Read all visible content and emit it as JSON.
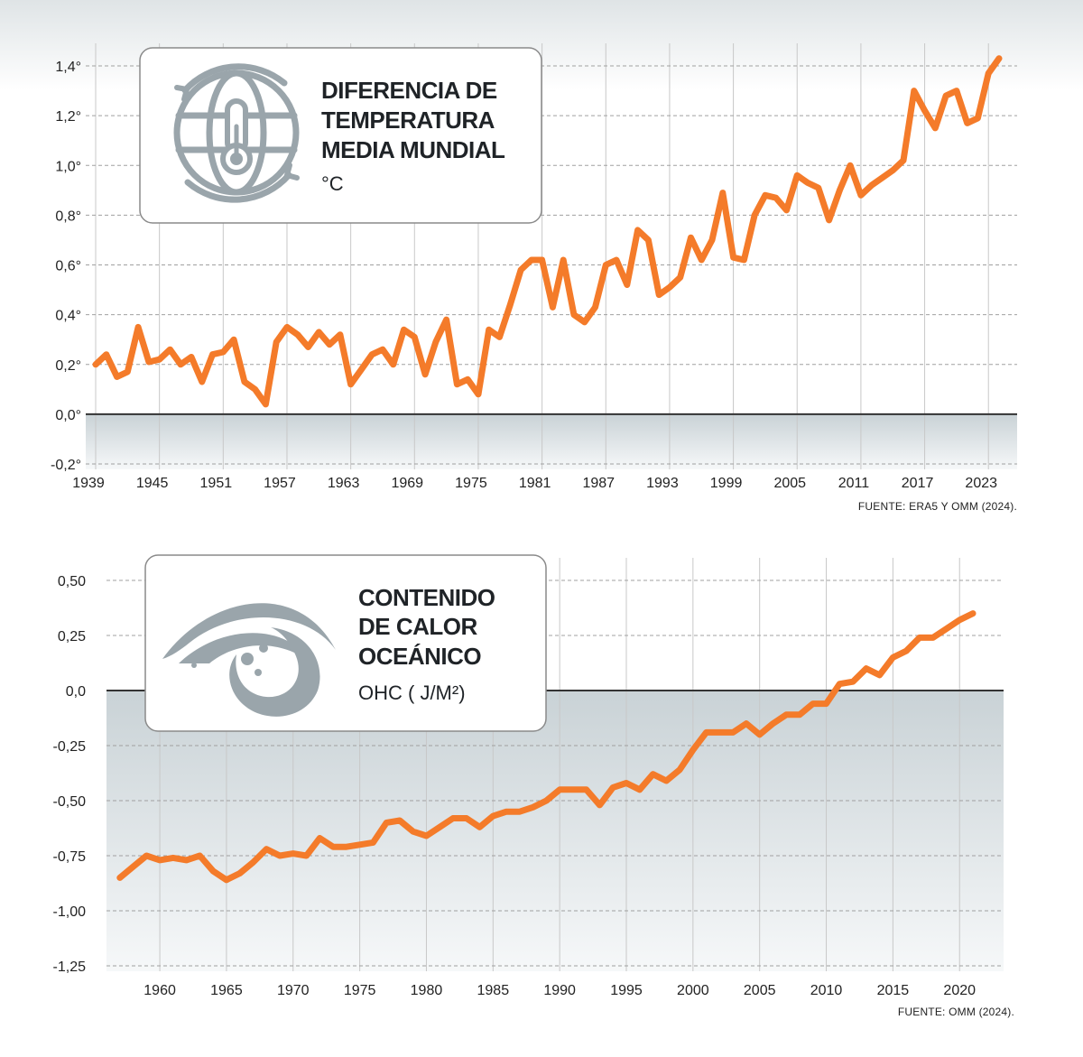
{
  "colors": {
    "line": "#F47B2A",
    "grid": "#a0a0a0",
    "vgrid": "#c8c8c8",
    "icon": "#9aa5ab",
    "card_border": "#8a8a8a"
  },
  "icons": [
    "globe-thermometer-icon",
    "ocean-wave-icon"
  ],
  "chart_data": [
    {
      "type": "line",
      "title_lines": [
        "DIFERENCIA DE",
        "TEMPERATURA",
        "MEDIA MUNDIAL"
      ],
      "unit_label": "°C",
      "source": "FUENTE: ERA5 Y OMM (2024).",
      "ylim": [
        -0.2,
        1.4
      ],
      "xlim": [
        1939,
        2024
      ],
      "y_tick_values": [
        1.4,
        1.2,
        1.0,
        0.8,
        0.6,
        0.4,
        0.2,
        0.0,
        -0.2
      ],
      "y_tick_labels": [
        "1,4°",
        "1,2°",
        "1,0°",
        "0,8°",
        "0,6°",
        "0,4°",
        "0,2°",
        "0,0°",
        "-0,2°"
      ],
      "x_tick_values": [
        1939,
        1945,
        1951,
        1957,
        1963,
        1969,
        1975,
        1981,
        1987,
        1993,
        1999,
        2005,
        2011,
        2017,
        2023
      ],
      "x_tick_labels": [
        "1939",
        "1945",
        "1951",
        "1957",
        "1963",
        "1969",
        "1975",
        "1981",
        "1987",
        "1993",
        "1999",
        "2005",
        "2011",
        "2017",
        "2023"
      ],
      "grid": true,
      "series": [
        {
          "x": [
            1939,
            1940,
            1941,
            1942,
            1943,
            1944,
            1945,
            1946,
            1947,
            1948,
            1949,
            1950,
            1951,
            1952,
            1953,
            1954,
            1955,
            1956,
            1957,
            1958,
            1959,
            1960,
            1961,
            1962,
            1963,
            1964,
            1965,
            1966,
            1967,
            1968,
            1969,
            1970,
            1971,
            1972,
            1973,
            1974,
            1975,
            1976,
            1977,
            1978,
            1979,
            1980,
            1981,
            1982,
            1983,
            1984,
            1985,
            1986,
            1987,
            1988,
            1989,
            1990,
            1991,
            1992,
            1993,
            1994,
            1995,
            1996,
            1997,
            1998,
            1999,
            2000,
            2001,
            2002,
            2003,
            2004,
            2005,
            2006,
            2007,
            2008,
            2009,
            2010,
            2011,
            2012,
            2013,
            2014,
            2015,
            2016,
            2017,
            2018,
            2019,
            2020,
            2021,
            2022,
            2023,
            2024
          ],
          "y": [
            0.2,
            0.24,
            0.15,
            0.17,
            0.35,
            0.21,
            0.22,
            0.26,
            0.2,
            0.23,
            0.13,
            0.24,
            0.25,
            0.3,
            0.13,
            0.1,
            0.04,
            0.29,
            0.35,
            0.32,
            0.27,
            0.33,
            0.28,
            0.32,
            0.12,
            0.18,
            0.24,
            0.26,
            0.2,
            0.34,
            0.31,
            0.16,
            0.29,
            0.38,
            0.12,
            0.14,
            0.08,
            0.34,
            0.31,
            0.44,
            0.58,
            0.62,
            0.62,
            0.43,
            0.62,
            0.4,
            0.37,
            0.43,
            0.6,
            0.62,
            0.52,
            0.74,
            0.7,
            0.48,
            0.51,
            0.55,
            0.71,
            0.62,
            0.7,
            0.89,
            0.63,
            0.62,
            0.8,
            0.88,
            0.87,
            0.82,
            0.96,
            0.93,
            0.91,
            0.78,
            0.9,
            1.0,
            0.88,
            0.92,
            0.95,
            0.98,
            1.02,
            1.3,
            1.22,
            1.15,
            1.28,
            1.3,
            1.17,
            1.19,
            1.37,
            1.43
          ]
        }
      ]
    },
    {
      "type": "line",
      "title_lines": [
        "CONTENIDO",
        "DE CALOR",
        "OCEÁNICO"
      ],
      "unit_label": "OHC ( J/M²)",
      "source": "FUENTE: OMM (2024).",
      "ylim": [
        -1.25,
        0.5
      ],
      "xlim": [
        1956,
        2021
      ],
      "y_tick_values": [
        0.5,
        0.25,
        0.0,
        -0.25,
        -0.5,
        -0.75,
        -1.0,
        -1.25
      ],
      "y_tick_labels": [
        "0,50",
        "0,25",
        "0,0",
        "-0,25",
        "-0,50",
        "-0,75",
        "-1,00",
        "-1,25"
      ],
      "x_tick_values": [
        1960,
        1965,
        1970,
        1975,
        1980,
        1985,
        1990,
        1995,
        2000,
        2005,
        2010,
        2015,
        2020
      ],
      "x_tick_labels": [
        "1960",
        "1965",
        "1970",
        "1975",
        "1980",
        "1985",
        "1990",
        "1995",
        "2000",
        "2005",
        "2010",
        "2015",
        "2020"
      ],
      "grid": true,
      "series": [
        {
          "x": [
            1957,
            1958,
            1959,
            1960,
            1961,
            1962,
            1963,
            1964,
            1965,
            1966,
            1967,
            1968,
            1969,
            1970,
            1971,
            1972,
            1973,
            1974,
            1975,
            1976,
            1977,
            1978,
            1979,
            1980,
            1981,
            1982,
            1983,
            1984,
            1985,
            1986,
            1987,
            1988,
            1989,
            1990,
            1991,
            1992,
            1993,
            1994,
            1995,
            1996,
            1997,
            1998,
            1999,
            2000,
            2001,
            2002,
            2003,
            2004,
            2005,
            2006,
            2007,
            2008,
            2009,
            2010,
            2011,
            2012,
            2013,
            2014,
            2015,
            2016,
            2017,
            2018,
            2019,
            2020,
            2021
          ],
          "y": [
            -0.85,
            -0.8,
            -0.75,
            -0.77,
            -0.76,
            -0.77,
            -0.75,
            -0.82,
            -0.86,
            -0.83,
            -0.78,
            -0.72,
            -0.75,
            -0.74,
            -0.75,
            -0.67,
            -0.71,
            -0.71,
            -0.7,
            -0.69,
            -0.6,
            -0.59,
            -0.64,
            -0.66,
            -0.62,
            -0.58,
            -0.58,
            -0.62,
            -0.57,
            -0.55,
            -0.55,
            -0.53,
            -0.5,
            -0.45,
            -0.45,
            -0.45,
            -0.52,
            -0.44,
            -0.42,
            -0.45,
            -0.38,
            -0.41,
            -0.36,
            -0.27,
            -0.19,
            -0.19,
            -0.19,
            -0.15,
            -0.2,
            -0.15,
            -0.11,
            -0.11,
            -0.06,
            -0.06,
            0.03,
            0.04,
            0.1,
            0.07,
            0.15,
            0.18,
            0.24,
            0.24,
            0.28,
            0.32,
            0.35
          ]
        }
      ]
    }
  ]
}
